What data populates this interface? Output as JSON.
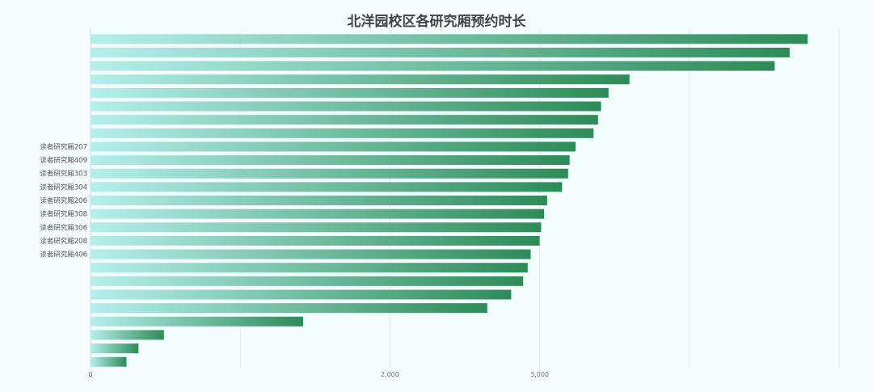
{
  "chart_data": {
    "type": "bar",
    "orientation": "horizontal",
    "title": "北洋园校区各研究厢预约时长",
    "xlabel": "",
    "ylabel": "",
    "xlim": [
      0,
      5000
    ],
    "x_ticks": [
      0,
      1000,
      2000,
      3000,
      4000,
      5000
    ],
    "x_tick_labels": [
      "0",
      "",
      "2,000",
      "3,000",
      "",
      ""
    ],
    "grid": true,
    "legend": "none",
    "colors": {
      "bar_start": "#b5efec",
      "bar_end": "#2e8b57"
    },
    "categories": [
      "",
      "",
      "",
      "",
      "",
      "",
      "",
      "",
      "读者研究厢207",
      "读者研究厢409",
      "读者研究厢303",
      "读者研究厢304",
      "读者研究厢206",
      "读者研究厢308",
      "读者研究厢306",
      "读者研究厢208",
      "读者研究厢406",
      "",
      "",
      "",
      "",
      "",
      "",
      "",
      ""
    ],
    "values": [
      4790,
      4670,
      4570,
      3600,
      3460,
      3410,
      3390,
      3360,
      3240,
      3200,
      3190,
      3150,
      3050,
      3030,
      3010,
      3000,
      2940,
      2920,
      2890,
      2810,
      2650,
      1420,
      490,
      320,
      240
    ]
  }
}
